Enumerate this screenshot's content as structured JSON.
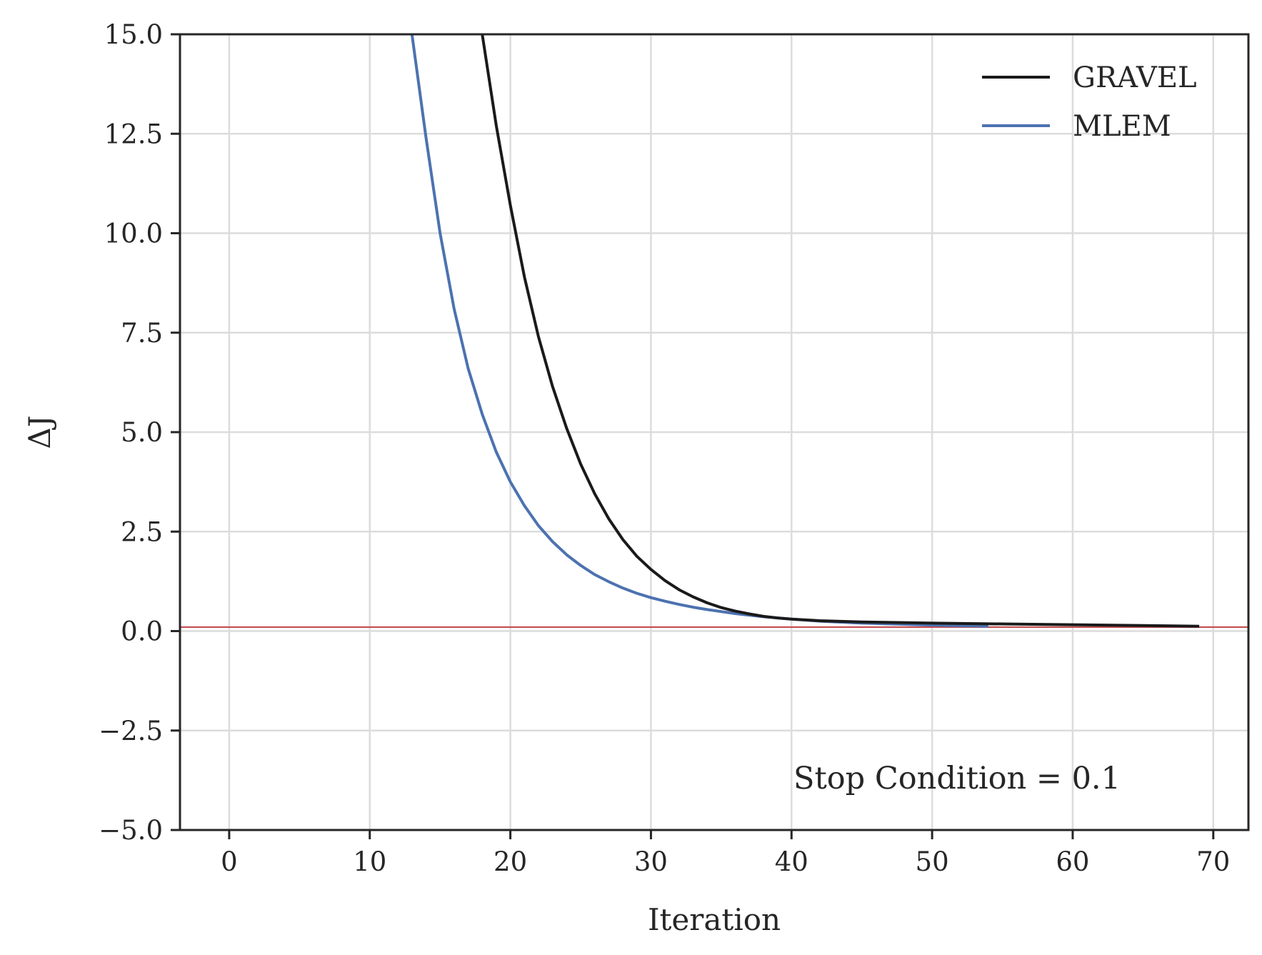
{
  "chart_data": {
    "type": "line",
    "xlabel": "Iteration",
    "ylabel": "ΔJ",
    "xlim": [
      -3.5,
      72.5
    ],
    "ylim": [
      -5.0,
      15.0
    ],
    "xticks": [
      0,
      10,
      20,
      30,
      40,
      50,
      60,
      70
    ],
    "xtick_labels": [
      "0",
      "10",
      "20",
      "30",
      "40",
      "50",
      "60",
      "70"
    ],
    "yticks": [
      -5.0,
      -2.5,
      0.0,
      2.5,
      5.0,
      7.5,
      10.0,
      12.5,
      15.0
    ],
    "ytick_labels": [
      "−5.0",
      "−2.5",
      "0.0",
      "2.5",
      "5.0",
      "7.5",
      "10.0",
      "12.5",
      "15.0"
    ],
    "grid": true,
    "legend_position": "top-right",
    "series": [
      {
        "name": "GRAVEL",
        "color": "#1a1a1a",
        "x": [
          17,
          18,
          19,
          20,
          21,
          22,
          23,
          24,
          25,
          26,
          27,
          28,
          29,
          30,
          31,
          32,
          33,
          34,
          35,
          36,
          37,
          38,
          39,
          40,
          42,
          45,
          50,
          55,
          60,
          65,
          69
        ],
        "y": [
          16.5,
          15.0,
          12.7,
          10.7,
          8.9,
          7.4,
          6.15,
          5.1,
          4.2,
          3.45,
          2.82,
          2.3,
          1.88,
          1.55,
          1.27,
          1.04,
          0.86,
          0.71,
          0.59,
          0.5,
          0.43,
          0.37,
          0.33,
          0.3,
          0.26,
          0.23,
          0.2,
          0.18,
          0.16,
          0.14,
          0.12
        ]
      },
      {
        "name": "MLEM",
        "color": "#4c72b0",
        "x": [
          12,
          13,
          14,
          15,
          16,
          17,
          18,
          19,
          20,
          21,
          22,
          23,
          24,
          25,
          26,
          27,
          28,
          29,
          30,
          31,
          32,
          33,
          34,
          35,
          36,
          37,
          38,
          39,
          40,
          42,
          45,
          50,
          54
        ],
        "y": [
          18.0,
          15.0,
          12.4,
          10.0,
          8.1,
          6.6,
          5.45,
          4.5,
          3.75,
          3.15,
          2.65,
          2.25,
          1.92,
          1.65,
          1.42,
          1.24,
          1.08,
          0.95,
          0.84,
          0.75,
          0.67,
          0.6,
          0.54,
          0.49,
          0.44,
          0.4,
          0.36,
          0.33,
          0.3,
          0.25,
          0.2,
          0.15,
          0.12
        ]
      }
    ],
    "reference_line": {
      "y": 0.1,
      "color": "#c44e52"
    },
    "annotation": "Stop Condition = 0.1"
  }
}
